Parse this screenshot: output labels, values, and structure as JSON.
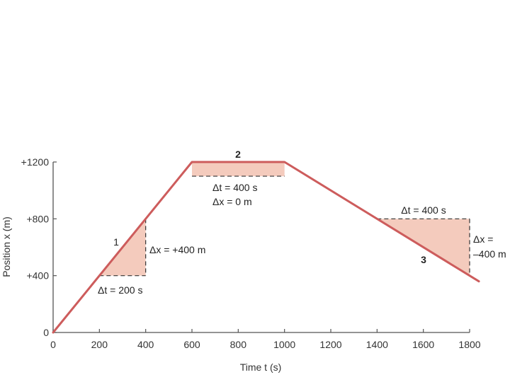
{
  "chart_data": {
    "type": "line",
    "xlabel": "Time t (s)",
    "ylabel": "Position x (m)",
    "xlim": [
      0,
      1800
    ],
    "ylim": [
      0,
      1200
    ],
    "x_ticks": [
      0,
      200,
      400,
      600,
      800,
      1000,
      1200,
      1400,
      1600,
      1800
    ],
    "x_tick_labels": [
      "0",
      "200",
      "400",
      "600",
      "800",
      "1000",
      "1200",
      "1400",
      "1600",
      "1800"
    ],
    "y_ticks": [
      0,
      400,
      800,
      1200
    ],
    "y_tick_labels": [
      "0",
      "+400",
      "+800",
      "+1200"
    ],
    "grid": false,
    "series": [
      {
        "x": [
          0,
          600,
          1000,
          1840
        ],
        "y": [
          0,
          1200,
          1200,
          360
        ],
        "color": "#cd5c5c"
      }
    ],
    "triangle_fill": "#f4cbbd",
    "segments": [
      {
        "label": "1",
        "triangle": [
          [
            200,
            400
          ],
          [
            400,
            800
          ],
          [
            400,
            400
          ]
        ],
        "dash_h": [
          [
            200,
            400
          ],
          [
            400,
            400
          ]
        ],
        "dash_v": [
          [
            400,
            800
          ],
          [
            400,
            400
          ]
        ],
        "annotations": [
          "Δt = 200 s",
          "Δx = +400 m"
        ]
      },
      {
        "label": "2",
        "triangle": [
          [
            600,
            1200
          ],
          [
            1000,
            1200
          ],
          [
            1000,
            1100
          ],
          [
            600,
            1100
          ]
        ],
        "dash_h": [
          [
            600,
            1100
          ],
          [
            1000,
            1100
          ]
        ],
        "annotations": [
          "Δt = 400 s",
          "Δx = 0 m"
        ]
      },
      {
        "label": "3",
        "triangle": [
          [
            1400,
            800
          ],
          [
            1800,
            800
          ],
          [
            1800,
            400
          ]
        ],
        "dash_h": [
          [
            1400,
            800
          ],
          [
            1800,
            800
          ]
        ],
        "dash_v": [
          [
            1800,
            800
          ],
          [
            1800,
            400
          ]
        ],
        "annotations": [
          "Δt = 400 s",
          "Δx =",
          "–400 m"
        ]
      }
    ]
  }
}
